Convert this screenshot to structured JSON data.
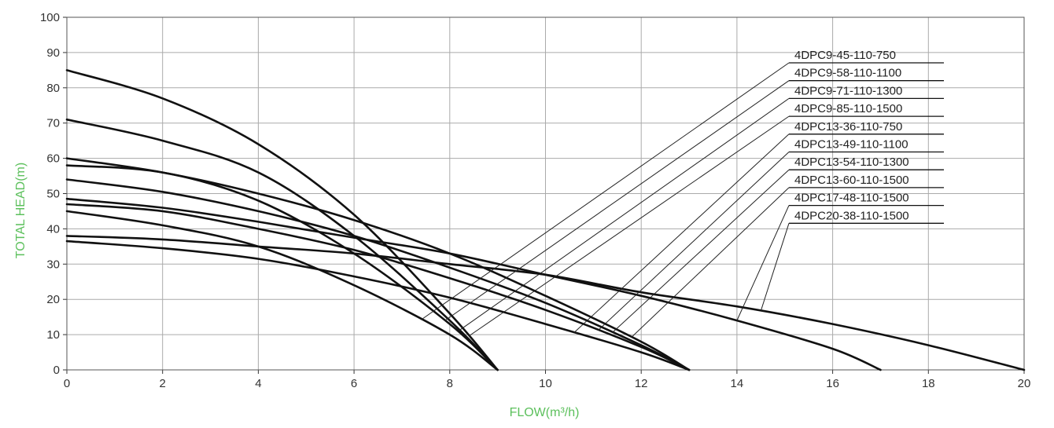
{
  "chart_data": {
    "type": "line",
    "title": "",
    "xlabel": "FLOW(m³/h)",
    "ylabel": "TOTAL HEAD(m)",
    "xlim": [
      0,
      20
    ],
    "ylim": [
      0,
      100
    ],
    "x_ticks": [
      "0",
      "2",
      "4",
      "6",
      "8",
      "10",
      "12",
      "14",
      "16",
      "18",
      "20"
    ],
    "y_ticks": [
      "0",
      "10",
      "20",
      "30",
      "40",
      "50",
      "60",
      "70",
      "80",
      "90",
      "100"
    ],
    "grid": true,
    "legend_position": "right, with leader lines",
    "colors": {
      "axis_label": "#5cc05c",
      "curve": "#111111",
      "grid": "#aaaaaa"
    },
    "series": [
      {
        "name": "4DPC9-45-110-750",
        "points": [
          [
            0,
            45
          ],
          [
            2,
            41
          ],
          [
            4,
            35
          ],
          [
            6,
            24
          ],
          [
            8,
            10
          ],
          [
            9,
            0
          ]
        ]
      },
      {
        "name": "4DPC9-58-110-1100",
        "points": [
          [
            0,
            58
          ],
          [
            2,
            56
          ],
          [
            4,
            48
          ],
          [
            6,
            33
          ],
          [
            8,
            13
          ],
          [
            9,
            0
          ]
        ]
      },
      {
        "name": "4DPC9-71-110-1300",
        "points": [
          [
            0,
            71
          ],
          [
            2,
            65
          ],
          [
            4,
            56
          ],
          [
            6,
            38
          ],
          [
            8,
            14
          ],
          [
            9,
            0
          ]
        ]
      },
      {
        "name": "4DPC9-85-110-1500",
        "points": [
          [
            0,
            85
          ],
          [
            2,
            77
          ],
          [
            4,
            64
          ],
          [
            6,
            44
          ],
          [
            8,
            16
          ],
          [
            9,
            0
          ]
        ]
      },
      {
        "name": "4DPC13-36-110-750",
        "points": [
          [
            0,
            36.5
          ],
          [
            2,
            34.5
          ],
          [
            4,
            31.5
          ],
          [
            6,
            26.5
          ],
          [
            8,
            20.5
          ],
          [
            10,
            13
          ],
          [
            12,
            5
          ],
          [
            13,
            0
          ]
        ]
      },
      {
        "name": "4DPC13-49-110-1100",
        "points": [
          [
            0,
            47
          ],
          [
            2,
            45
          ],
          [
            4,
            40
          ],
          [
            6,
            34
          ],
          [
            8,
            26
          ],
          [
            10,
            17
          ],
          [
            12,
            6.5
          ],
          [
            13,
            0
          ]
        ]
      },
      {
        "name": "4DPC13-54-110-1300",
        "points": [
          [
            0,
            54
          ],
          [
            2,
            50.5
          ],
          [
            4,
            45
          ],
          [
            6,
            38
          ],
          [
            8,
            29
          ],
          [
            10,
            19
          ],
          [
            12,
            7
          ],
          [
            13,
            0
          ]
        ]
      },
      {
        "name": "4DPC13-60-110-1500",
        "points": [
          [
            0,
            60
          ],
          [
            2,
            56
          ],
          [
            4,
            50
          ],
          [
            6,
            42.5
          ],
          [
            8,
            33
          ],
          [
            10,
            21
          ],
          [
            12,
            8
          ],
          [
            13,
            0
          ]
        ]
      },
      {
        "name": "4DPC17-48-110-1500",
        "points": [
          [
            0,
            48.5
          ],
          [
            2,
            46
          ],
          [
            4,
            42
          ],
          [
            6,
            37.5
          ],
          [
            8,
            33
          ],
          [
            10,
            27
          ],
          [
            12,
            21
          ],
          [
            14,
            14
          ],
          [
            16,
            6
          ],
          [
            17,
            0
          ]
        ]
      },
      {
        "name": "4DPC20-38-110-1500",
        "points": [
          [
            0,
            38
          ],
          [
            2,
            37
          ],
          [
            4,
            35
          ],
          [
            6,
            33
          ],
          [
            8,
            30
          ],
          [
            10,
            27
          ],
          [
            12,
            22
          ],
          [
            14,
            18
          ],
          [
            16,
            13
          ],
          [
            18,
            7
          ],
          [
            20,
            0
          ]
        ]
      }
    ]
  }
}
